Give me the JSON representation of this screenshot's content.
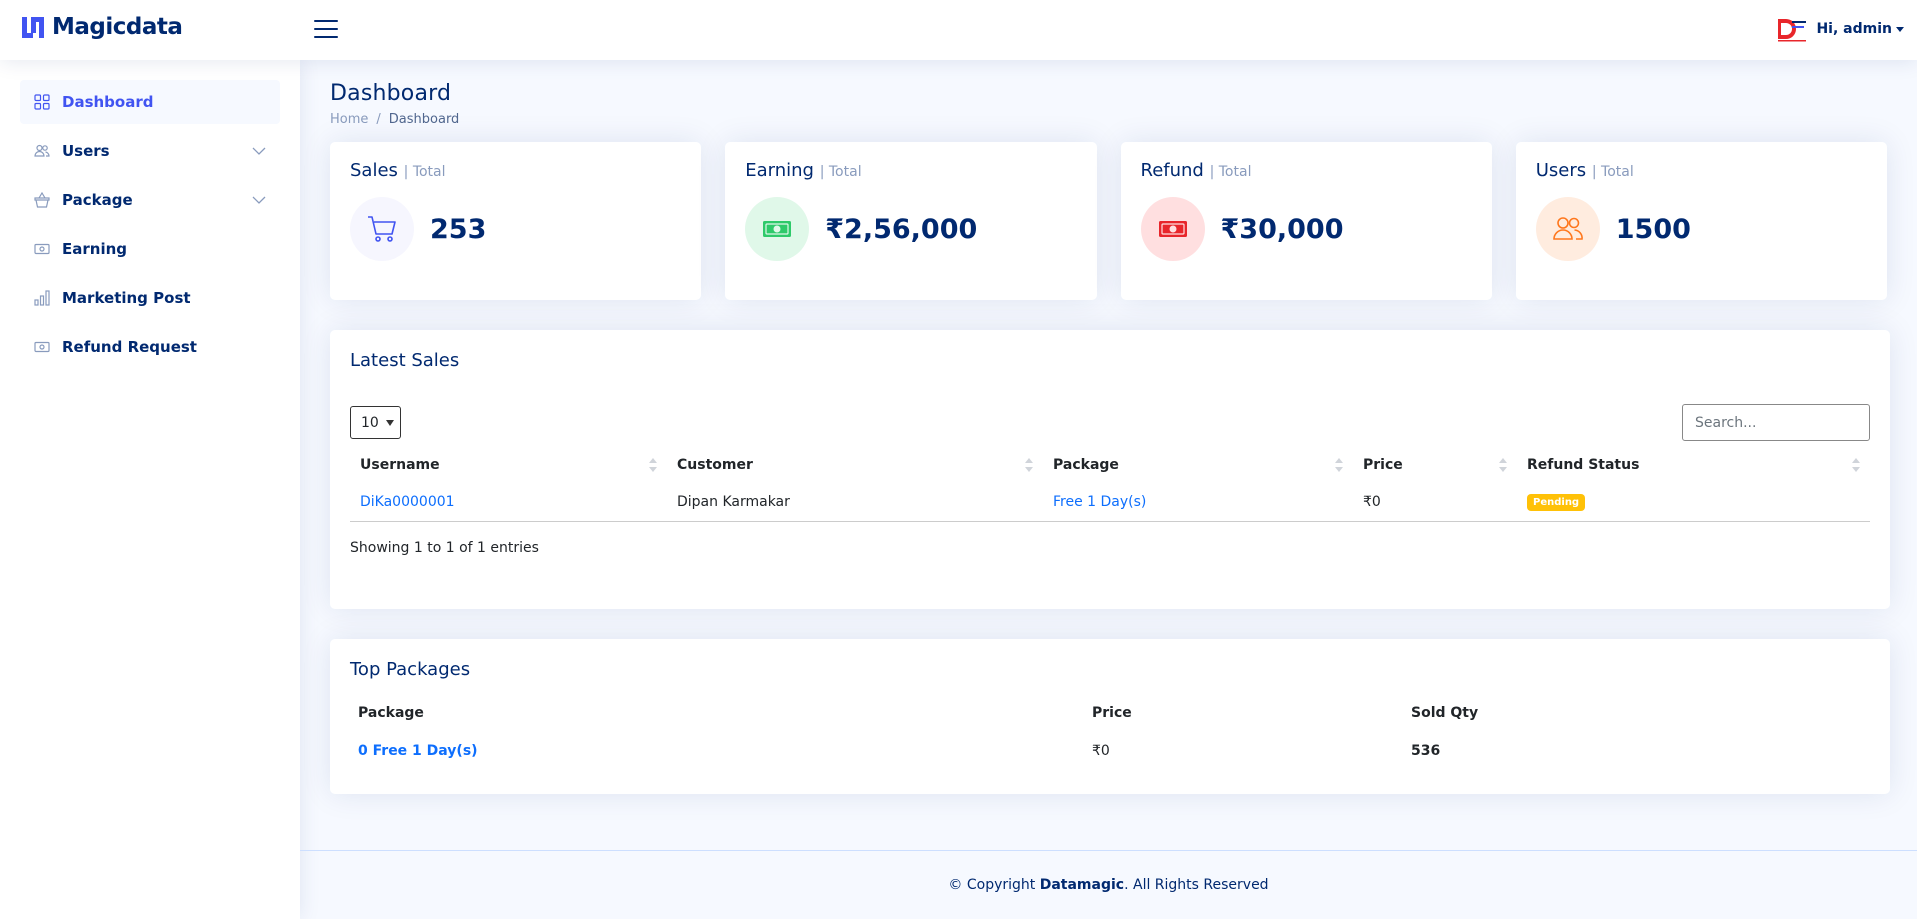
{
  "header": {
    "brand": "Magicdata",
    "user_greeting": "Hi, admin"
  },
  "sidebar": {
    "items": [
      {
        "label": "Dashboard",
        "icon": "grid-icon",
        "active": true
      },
      {
        "label": "Users",
        "icon": "people-icon",
        "expandable": true
      },
      {
        "label": "Package",
        "icon": "basket-icon",
        "expandable": true
      },
      {
        "label": "Earning",
        "icon": "cash-icon"
      },
      {
        "label": "Marketing Post",
        "icon": "bar-chart-icon"
      },
      {
        "label": "Refund Request",
        "icon": "cash-icon"
      }
    ]
  },
  "page": {
    "title": "Dashboard",
    "breadcrumb": {
      "home": "Home",
      "separator": "/",
      "current": "Dashboard"
    }
  },
  "cards": [
    {
      "title": "Sales",
      "sub": "| Total",
      "value": "253",
      "icon": "cart-icon",
      "color": "#4154f1",
      "bg": "#f6f6fe"
    },
    {
      "title": "Earning",
      "sub": "| Total",
      "value": "₹2,56,000",
      "icon": "cash-icon",
      "color": "#2eca6a",
      "bg": "#e0f8e9"
    },
    {
      "title": "Refund",
      "sub": "| Total",
      "value": "₹30,000",
      "icon": "cash-icon",
      "color": "#e8262b",
      "bg": "#ffdfe0"
    },
    {
      "title": "Users",
      "sub": "| Total",
      "value": "1500",
      "icon": "people-icon",
      "color": "#ff771d",
      "bg": "#ffecdf"
    }
  ],
  "latest_sales": {
    "title": "Latest Sales",
    "page_length": "10",
    "search_placeholder": "Search...",
    "columns": [
      "Username",
      "Customer",
      "Package",
      "Price",
      "Refund Status"
    ],
    "rows": [
      {
        "username": "DiKa0000001",
        "customer": "Dipan Karmakar",
        "package": "Free 1 Day(s)",
        "price": "₹0",
        "status": "Pending"
      }
    ],
    "info": "Showing 1 to 1 of 1 entries"
  },
  "top_packages": {
    "title": "Top Packages",
    "columns": [
      "Package",
      "Price",
      "Sold Qty"
    ],
    "rows": [
      {
        "package": "0 Free 1 Day(s)",
        "price": "₹0",
        "sold_qty": "536"
      }
    ]
  },
  "footer": {
    "prefix": "© Copyright",
    "company": "Datamagic",
    "suffix": ". All Rights Reserved"
  }
}
